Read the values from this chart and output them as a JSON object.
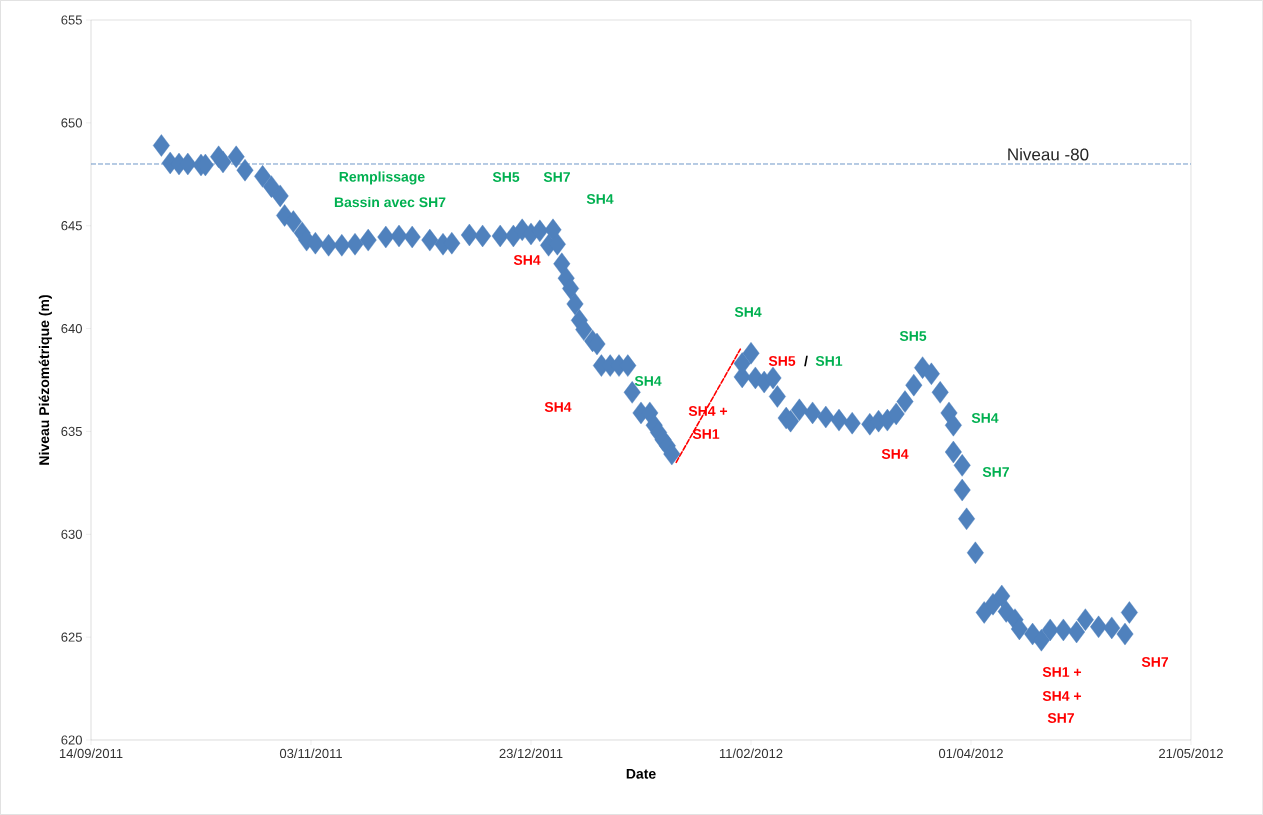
{
  "chart_data": {
    "type": "scatter",
    "xlabel": "Date",
    "ylabel": "Niveau Piézométrique (m)",
    "xlim": [
      "2011-09-14",
      "2012-05-21"
    ],
    "ylim": [
      620,
      655
    ],
    "xticks": [
      {
        "value": "2011-09-14",
        "label": "14/09/2011"
      },
      {
        "value": "2011-11-03",
        "label": "03/11/2011"
      },
      {
        "value": "2011-12-23",
        "label": "23/12/2011"
      },
      {
        "value": "2012-02-11",
        "label": "11/02/2012"
      },
      {
        "value": "2012-04-01",
        "label": "01/04/2012"
      },
      {
        "value": "2012-05-21",
        "label": "21/05/2012"
      }
    ],
    "yticks": [
      620,
      625,
      630,
      635,
      640,
      645,
      650,
      655
    ],
    "grid": false,
    "marker": "diamond",
    "series": [
      {
        "color": "#4f81bd",
        "x": [
          "2011-09-30",
          "2011-10-02",
          "2011-10-04",
          "2011-10-06",
          "2011-10-09",
          "2011-10-10",
          "2011-10-13",
          "2011-10-14",
          "2011-10-17",
          "2011-10-19",
          "2011-10-23",
          "2011-10-25",
          "2011-10-27",
          "2011-10-28",
          "2011-10-30",
          "2011-11-01",
          "2011-11-02",
          "2011-11-04",
          "2011-11-07",
          "2011-11-10",
          "2011-11-13",
          "2011-11-16",
          "2011-11-20",
          "2011-11-23",
          "2011-11-26",
          "2011-11-30",
          "2011-12-03",
          "2011-12-05",
          "2011-12-09",
          "2011-12-12",
          "2011-12-16",
          "2011-12-19",
          "2011-12-21",
          "2011-12-23",
          "2011-12-25",
          "2011-12-27",
          "2011-12-28",
          "2011-12-29",
          "2011-12-30",
          "2011-12-31",
          "2012-01-01",
          "2012-01-02",
          "2012-01-03",
          "2012-01-04",
          "2012-01-06",
          "2012-01-07",
          "2012-01-08",
          "2012-01-10",
          "2012-01-12",
          "2012-01-14",
          "2012-01-15",
          "2012-01-17",
          "2012-01-19",
          "2012-01-20",
          "2012-01-21",
          "2012-01-22",
          "2012-01-23",
          "2012-01-24",
          "2012-02-09",
          "2012-02-09",
          "2012-02-11",
          "2012-02-12",
          "2012-02-14",
          "2012-02-16",
          "2012-02-17",
          "2012-02-19",
          "2012-02-20",
          "2012-02-22",
          "2012-02-25",
          "2012-02-28",
          "2012-03-02",
          "2012-03-05",
          "2012-03-09",
          "2012-03-11",
          "2012-03-13",
          "2012-03-15",
          "2012-03-17",
          "2012-03-19",
          "2012-03-21",
          "2012-03-23",
          "2012-03-25",
          "2012-03-27",
          "2012-03-28",
          "2012-03-28",
          "2012-03-30",
          "2012-03-30",
          "2012-03-31",
          "2012-04-02",
          "2012-04-04",
          "2012-04-06",
          "2012-04-08",
          "2012-04-09",
          "2012-04-11",
          "2012-04-12",
          "2012-04-15",
          "2012-04-17",
          "2012-04-19",
          "2012-04-22",
          "2012-04-25",
          "2012-04-27",
          "2012-04-30",
          "2012-05-03",
          "2012-05-06",
          "2012-05-07"
        ],
        "values": [
          648.9,
          648.05,
          648.0,
          648.0,
          647.95,
          647.95,
          648.35,
          648.1,
          648.35,
          647.7,
          647.4,
          646.9,
          646.45,
          645.5,
          645.2,
          644.65,
          644.3,
          644.15,
          644.05,
          644.05,
          644.1,
          644.3,
          644.45,
          644.5,
          644.45,
          644.3,
          644.1,
          644.15,
          644.55,
          644.5,
          644.5,
          644.5,
          644.8,
          644.6,
          644.75,
          644.05,
          644.8,
          644.1,
          643.15,
          642.45,
          641.95,
          641.2,
          640.4,
          639.95,
          639.4,
          639.25,
          638.2,
          638.2,
          638.2,
          638.2,
          636.9,
          635.9,
          635.9,
          635.3,
          634.95,
          634.6,
          634.3,
          633.9,
          637.65,
          638.3,
          638.8,
          637.6,
          637.4,
          637.6,
          636.7,
          635.65,
          635.5,
          636.05,
          635.9,
          635.7,
          635.55,
          635.4,
          635.35,
          635.5,
          635.55,
          635.85,
          636.45,
          637.25,
          638.1,
          637.8,
          636.9,
          635.9,
          635.3,
          634.0,
          633.35,
          632.15,
          630.75,
          629.1,
          626.2,
          626.6,
          627.0,
          626.25,
          625.85,
          625.4,
          625.15,
          624.85,
          625.35,
          625.35,
          625.25,
          625.85,
          625.5,
          625.45,
          625.15,
          626.2
        ]
      },
      {
        "type": "line",
        "color": "#ff0000",
        "line_style": "dashed",
        "marker": "none",
        "x": [
          "2012-01-25",
          "2012-02-08T14:00"
        ],
        "values": [
          633.5,
          639.0
        ]
      }
    ],
    "ref_lines": [
      {
        "axis": "y",
        "value": 648,
        "label": "Niveau -80",
        "color": "#4a7ebb",
        "line_style": "dashed"
      }
    ],
    "annotations": [
      "Remplissage",
      "Bassin avec  SH7",
      "SH5",
      "SH7",
      "SH4",
      "SH4",
      "SH4",
      "SH4",
      "SH4 +",
      "SH1",
      "SH4",
      "SH5",
      "/",
      "SH1",
      "SH5",
      "SH4",
      "SH4",
      "SH7",
      "SH1 +",
      "SH4 +",
      "SH7",
      "SH7"
    ]
  }
}
